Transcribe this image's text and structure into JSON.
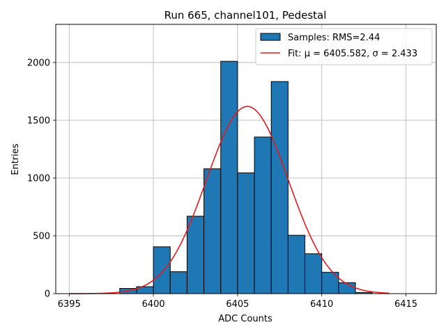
{
  "chart_data": {
    "type": "histogram",
    "title": "Run 665, channel101, Pedestal",
    "xlabel": "ADC Counts",
    "ylabel": "Entries",
    "xlim": [
      6394.2,
      6416.8
    ],
    "ylim": [
      0,
      2330
    ],
    "x_ticks": [
      6395,
      6400,
      6405,
      6410,
      6415
    ],
    "y_ticks": [
      0,
      500,
      1000,
      1500,
      2000
    ],
    "grid": true,
    "legend_position": "top-right",
    "bins": [
      {
        "x0": 6398,
        "x1": 6399,
        "value": 45
      },
      {
        "x0": 6399,
        "x1": 6400,
        "value": 60
      },
      {
        "x0": 6400,
        "x1": 6401,
        "value": 405
      },
      {
        "x0": 6401,
        "x1": 6402,
        "value": 190
      },
      {
        "x0": 6402,
        "x1": 6403,
        "value": 670
      },
      {
        "x0": 6403,
        "x1": 6404,
        "value": 1080
      },
      {
        "x0": 6404,
        "x1": 6405,
        "value": 2010
      },
      {
        "x0": 6405,
        "x1": 6406,
        "value": 1045
      },
      {
        "x0": 6406,
        "x1": 6407,
        "value": 1355
      },
      {
        "x0": 6407,
        "x1": 6408,
        "value": 1835
      },
      {
        "x0": 6408,
        "x1": 6409,
        "value": 505
      },
      {
        "x0": 6409,
        "x1": 6410,
        "value": 345
      },
      {
        "x0": 6410,
        "x1": 6411,
        "value": 185
      },
      {
        "x0": 6411,
        "x1": 6412,
        "value": 95
      },
      {
        "x0": 6412,
        "x1": 6413,
        "value": 10
      }
    ],
    "fit": {
      "type": "gaussian",
      "mu": 6405.582,
      "sigma": 2.433,
      "amplitude": 1620,
      "x_range": [
        6395,
        6414
      ]
    },
    "legend": [
      {
        "label": "Samples: RMS=2.44",
        "kind": "bar",
        "color": "#1f77b4"
      },
      {
        "label": "Fit: μ = 6405.582, σ = 2.433",
        "kind": "line",
        "color": "#e41a1c"
      }
    ],
    "colors": {
      "bar": "#1f77b4",
      "bar_edge": "#000000",
      "fit": "#e41a1c",
      "grid": "#b0b0b0"
    }
  }
}
